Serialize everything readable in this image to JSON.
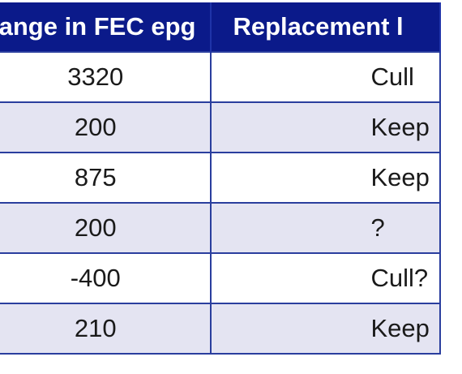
{
  "table": {
    "headers": [
      "hange in FEC epg",
      "Replacement l"
    ],
    "rows": [
      {
        "change": "3320",
        "replacement": "Cull"
      },
      {
        "change": "200",
        "replacement": "Keep"
      },
      {
        "change": "875",
        "replacement": "Keep"
      },
      {
        "change": "200",
        "replacement": "?"
      },
      {
        "change": "-400",
        "replacement": "Cull?"
      },
      {
        "change": "210",
        "replacement": "Keep"
      }
    ]
  },
  "colors": {
    "header_bg": "#0b1a8a",
    "header_text": "#ffffff",
    "row_alt_bg": "#e4e4f2",
    "border": "#2a3e9e"
  }
}
